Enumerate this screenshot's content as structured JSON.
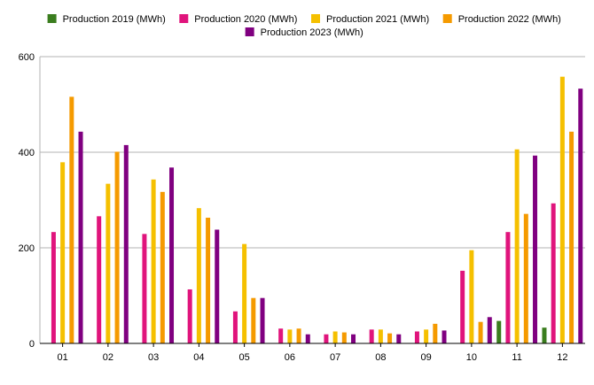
{
  "chart_data": {
    "type": "bar",
    "categories": [
      "01",
      "02",
      "03",
      "04",
      "05",
      "06",
      "07",
      "08",
      "09",
      "10",
      "11",
      "12"
    ],
    "series": [
      {
        "name": "Production 2019 (MWh)",
        "color": "#3a7d1e",
        "values": [
          0,
          0,
          0,
          0,
          0,
          0,
          0,
          0,
          0,
          0,
          47,
          33
        ]
      },
      {
        "name": "Production 2020 (MWh)",
        "color": "#e0147c",
        "values": [
          233,
          266,
          229,
          113,
          67,
          31,
          19,
          29,
          25,
          152,
          233,
          293
        ]
      },
      {
        "name": "Production 2021 (MWh)",
        "color": "#f5c000",
        "values": [
          379,
          334,
          343,
          283,
          208,
          29,
          25,
          29,
          29,
          195,
          406,
          558
        ]
      },
      {
        "name": "Production 2022 (MWh)",
        "color": "#f59a00",
        "values": [
          516,
          401,
          317,
          263,
          95,
          31,
          23,
          21,
          41,
          45,
          271,
          443
        ]
      },
      {
        "name": "Production 2023 (MWh)",
        "color": "#800080",
        "values": [
          443,
          415,
          368,
          238,
          95,
          19,
          19,
          19,
          27,
          55,
          393,
          533
        ]
      }
    ],
    "ylim": [
      0,
      600
    ],
    "yticks": [
      0,
      200,
      400,
      600
    ],
    "grid": true,
    "legend": "top-center",
    "title": "",
    "xlabel": "",
    "ylabel": ""
  }
}
